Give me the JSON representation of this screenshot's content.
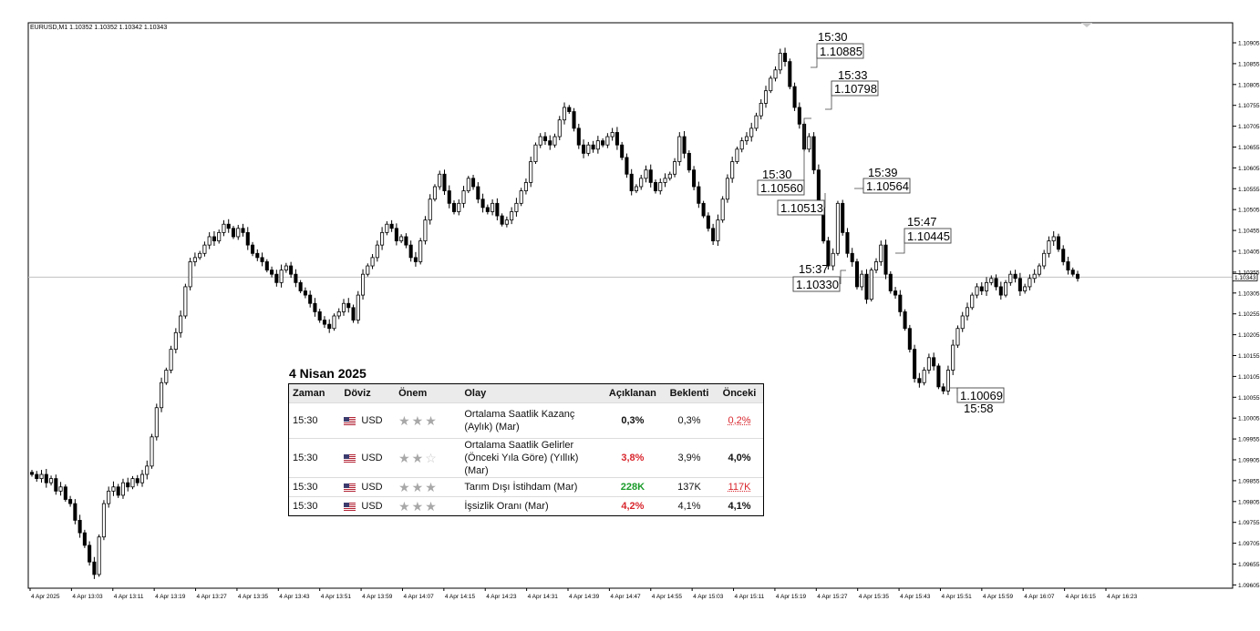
{
  "symbol_label": "EURUSD,M1  1.10352 1.10352 1.10342 1.10343",
  "colors": {
    "background": "#ffffff",
    "candle": "#000000",
    "grid_line": "#c0c0c0",
    "positive": "#1a9b2a",
    "negative": "#d8262d"
  },
  "chart_data": {
    "type": "candlestick",
    "symbol": "EURUSD",
    "timeframe": "M1",
    "ylim": [
      1.09605,
      1.10955
    ],
    "y_ticks": [
      "1.10905",
      "1.10855",
      "1.10805",
      "1.10755",
      "1.10705",
      "1.10655",
      "1.10605",
      "1.10555",
      "1.10505",
      "1.10455",
      "1.10405",
      "1.10355",
      "1.10305",
      "1.10255",
      "1.10205",
      "1.10155",
      "1.10105",
      "1.10055",
      "1.10005",
      "1.09955",
      "1.09905",
      "1.09855",
      "1.09805",
      "1.09755",
      "1.09705",
      "1.09655",
      "1.09605"
    ],
    "x_ticks": [
      "4 Apr 2025",
      "4 Apr 13:03",
      "4 Apr 13:11",
      "4 Apr 13:19",
      "4 Apr 13:27",
      "4 Apr 13:35",
      "4 Apr 13:43",
      "4 Apr 13:51",
      "4 Apr 13:59",
      "4 Apr 14:07",
      "4 Apr 14:15",
      "4 Apr 14:23",
      "4 Apr 14:31",
      "4 Apr 14:39",
      "4 Apr 14:47",
      "4 Apr 14:55",
      "4 Apr 15:03",
      "4 Apr 15:11",
      "4 Apr 15:19",
      "4 Apr 15:27",
      "4 Apr 15:35",
      "4 Apr 15:43",
      "4 Apr 15:51",
      "4 Apr 15:59",
      "4 Apr 16:07",
      "4 Apr 16:15",
      "4 Apr 16:23"
    ],
    "current_price": 1.10343,
    "current_price_label": "1.10343",
    "bid_line": true,
    "closes": [
      1.0987,
      1.0986,
      1.0987,
      1.0985,
      1.0986,
      1.0983,
      1.0984,
      1.0981,
      1.098,
      1.0976,
      1.0973,
      1.097,
      1.0966,
      1.0963,
      1.0972,
      1.098,
      1.0983,
      1.0984,
      1.0982,
      1.0985,
      1.0984,
      1.0986,
      1.0985,
      1.0987,
      1.0989,
      1.0996,
      1.1003,
      1.1009,
      1.1012,
      1.1017,
      1.1021,
      1.1025,
      1.1032,
      1.1038,
      1.1039,
      1.104,
      1.1042,
      1.1044,
      1.1043,
      1.1045,
      1.1047,
      1.1046,
      1.1044,
      1.1046,
      1.1045,
      1.1042,
      1.104,
      1.1039,
      1.1038,
      1.1036,
      1.1035,
      1.1033,
      1.1036,
      1.1037,
      1.1035,
      1.1033,
      1.1031,
      1.103,
      1.1028,
      1.1026,
      1.1024,
      1.1023,
      1.1022,
      1.1025,
      1.1026,
      1.1028,
      1.1027,
      1.1024,
      1.103,
      1.1035,
      1.1037,
      1.1039,
      1.1042,
      1.1045,
      1.1047,
      1.1046,
      1.1043,
      1.1044,
      1.1042,
      1.1039,
      1.1038,
      1.1043,
      1.1048,
      1.1053,
      1.1056,
      1.1059,
      1.1055,
      1.1052,
      1.105,
      1.1052,
      1.1055,
      1.1058,
      1.1056,
      1.1053,
      1.1051,
      1.105,
      1.1052,
      1.1049,
      1.1047,
      1.1048,
      1.105,
      1.1052,
      1.1055,
      1.1057,
      1.1062,
      1.1066,
      1.1068,
      1.1067,
      1.1066,
      1.1068,
      1.1072,
      1.1075,
      1.1074,
      1.107,
      1.1066,
      1.1064,
      1.1066,
      1.1065,
      1.1067,
      1.1066,
      1.1068,
      1.1069,
      1.1066,
      1.1063,
      1.1059,
      1.1055,
      1.1056,
      1.1058,
      1.106,
      1.1057,
      1.1055,
      1.1057,
      1.1058,
      1.1059,
      1.1062,
      1.1068,
      1.1064,
      1.106,
      1.1056,
      1.1052,
      1.1049,
      1.1046,
      1.1043,
      1.1048,
      1.1053,
      1.1058,
      1.1062,
      1.1065,
      1.1067,
      1.1068,
      1.107,
      1.1073,
      1.1076,
      1.1079,
      1.1082,
      1.1084,
      1.1088,
      1.1086,
      1.108,
      1.1075,
      1.1071,
      1.1065,
      1.1068,
      1.106,
      1.1051,
      1.1043,
      1.1037,
      1.104,
      1.1052,
      1.1045,
      1.104,
      1.1038,
      1.1032,
      1.1035,
      1.1029,
      1.1036,
      1.1038,
      1.1042,
      1.1035,
      1.1031,
      1.103,
      1.1026,
      1.1022,
      1.1017,
      1.101,
      1.1009,
      1.1012,
      1.1015,
      1.1013,
      1.1008,
      1.1007,
      1.1012,
      1.1018,
      1.1022,
      1.1025,
      1.1027,
      1.103,
      1.1032,
      1.1031,
      1.1033,
      1.1034,
      1.1032,
      1.103,
      1.1033,
      1.1035,
      1.1034,
      1.1031,
      1.1032,
      1.1034,
      1.1035,
      1.1037,
      1.104,
      1.1043,
      1.1044,
      1.1041,
      1.1038,
      1.1036,
      1.1035,
      1.1034
    ],
    "annotations": [
      {
        "time": "15:30",
        "price": "1.10885"
      },
      {
        "time": "15:33",
        "price": "1.10798"
      },
      {
        "time": "15:30",
        "price": "1.10560"
      },
      {
        "price": "1.10513"
      },
      {
        "time": "15:39",
        "price": "1.10564"
      },
      {
        "time": "15:47",
        "price": "1.10445"
      },
      {
        "time": "15:37",
        "price": "1.10330"
      },
      {
        "time": "15:58",
        "price": "1.10069"
      }
    ]
  },
  "news": {
    "title": "4 Nisan 2025",
    "headers": {
      "time": "Zaman",
      "currency": "Döviz",
      "importance": "Önem",
      "event": "Olay",
      "actual": "Açıklanan",
      "forecast": "Beklenti",
      "previous": "Önceki"
    },
    "rows": [
      {
        "time": "15:30",
        "currency": "USD",
        "stars": 3,
        "event": "Ortalama Saatlik Kazanç (Aylık) (Mar)",
        "actual": "0,3%",
        "forecast": "0,3%",
        "previous": "0,2%"
      },
      {
        "time": "15:30",
        "currency": "USD",
        "stars": 2,
        "event": "Ortalama Saatlik Gelirler (Önceki Yıla Göre) (Yıllık) (Mar)",
        "actual": "3,8%",
        "forecast": "3,9%",
        "previous": "4,0%"
      },
      {
        "time": "15:30",
        "currency": "USD",
        "stars": 3,
        "event": "Tarım Dışı İstihdam (Mar)",
        "actual": "228K",
        "forecast": "137K",
        "previous": "117K"
      },
      {
        "time": "15:30",
        "currency": "USD",
        "stars": 3,
        "event": "İşsizlik Oranı (Mar)",
        "actual": "4,2%",
        "forecast": "4,1%",
        "previous": "4,1%"
      }
    ]
  }
}
